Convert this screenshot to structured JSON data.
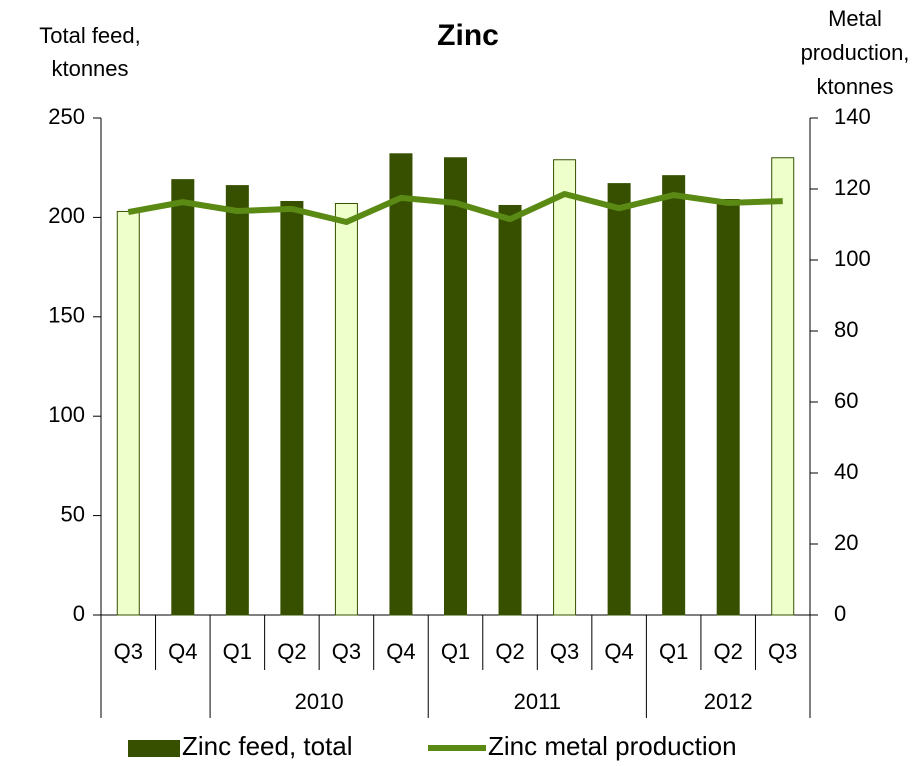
{
  "chart_data": {
    "type": "bar",
    "title": "Zinc",
    "ylabel": [
      "Total feed,",
      "ktonnes"
    ],
    "y2label": [
      "Metal",
      "production,",
      "ktonnes"
    ],
    "categories": [
      "Q3",
      "Q4",
      "Q1",
      "Q2",
      "Q3",
      "Q4",
      "Q1",
      "Q2",
      "Q3",
      "Q4",
      "Q1",
      "Q2",
      "Q3"
    ],
    "groups": [
      {
        "name": null,
        "count": 2
      },
      {
        "name": "2010",
        "count": 4
      },
      {
        "name": "2011",
        "count": 4
      },
      {
        "name": "2012",
        "count": 3
      }
    ],
    "series": [
      {
        "name": "Zinc feed, total",
        "type": "bar",
        "color": "#375000",
        "colors": [
          "#eeffcc",
          "#375000",
          "#375000",
          "#375000",
          "#eeffcc",
          "#375000",
          "#375000",
          "#375000",
          "#eeffcc",
          "#375000",
          "#375000",
          "#375000",
          "#eeffcc"
        ],
        "values": [
          203,
          219,
          216,
          208,
          207,
          232,
          230,
          206,
          229,
          217,
          221,
          209,
          230
        ]
      },
      {
        "name": "Zinc metal production",
        "type": "line",
        "axis": "y2",
        "color": "#5a8a14",
        "values": [
          113.5,
          116.3,
          113.8,
          114.4,
          110.7,
          117.5,
          116.1,
          111.5,
          118.6,
          114.6,
          118.3,
          116.1,
          116.6
        ]
      }
    ],
    "ylim": [
      0,
      250
    ],
    "yticks": [
      0,
      50,
      100,
      150,
      200,
      250
    ],
    "y2lim": [
      0,
      140
    ],
    "y2ticks": [
      0,
      20,
      40,
      60,
      80,
      100,
      120,
      140
    ],
    "legend": "bottom"
  }
}
